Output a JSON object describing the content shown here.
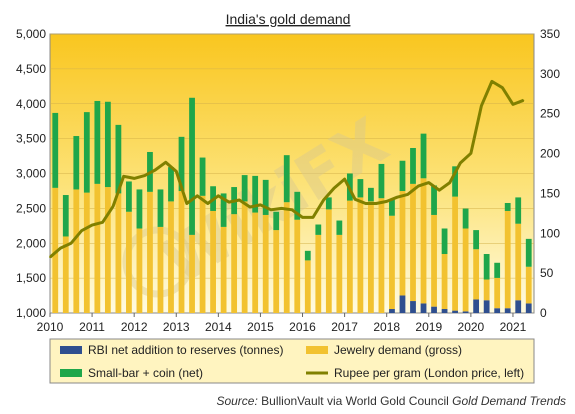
{
  "chart_data": {
    "type": "bar",
    "title": "India's gold demand",
    "left_axis": {
      "min": 1000,
      "max": 5000,
      "ticks": [
        "1,000",
        "1,500",
        "2,000",
        "2,500",
        "3,000",
        "3,500",
        "4,000",
        "4,500",
        "5,000"
      ]
    },
    "right_axis": {
      "min": 0,
      "max": 350,
      "ticks": [
        "0",
        "50",
        "100",
        "150",
        "200",
        "250",
        "300",
        "350"
      ]
    },
    "x_tick_labels": [
      "2010",
      "2011",
      "2012",
      "2013",
      "2014",
      "2015",
      "2016",
      "2017",
      "2018",
      "2019",
      "2020",
      "2021"
    ],
    "x_start": 2010.0,
    "x_end": 2021.5,
    "quarters": [
      "2010 Q1",
      "2010 Q2",
      "2010 Q3",
      "2010 Q4",
      "2011 Q1",
      "2011 Q2",
      "2011 Q3",
      "2011 Q4",
      "2012 Q1",
      "2012 Q2",
      "2012 Q3",
      "2012 Q4",
      "2013 Q1",
      "2013 Q2",
      "2013 Q3",
      "2013 Q4",
      "2014 Q1",
      "2014 Q2",
      "2014 Q3",
      "2014 Q4",
      "2015 Q1",
      "2015 Q2",
      "2015 Q3",
      "2015 Q4",
      "2016 Q1",
      "2016 Q2",
      "2016 Q3",
      "2016 Q4",
      "2017 Q1",
      "2017 Q2",
      "2017 Q3",
      "2017 Q4",
      "2018 Q1",
      "2018 Q2",
      "2018 Q3",
      "2018 Q4",
      "2019 Q1",
      "2019 Q2",
      "2019 Q3",
      "2019 Q4",
      "2020 Q1",
      "2020 Q2",
      "2020 Q3",
      "2020 Q4",
      "2021 Q1",
      "2021 Q2"
    ],
    "series": [
      {
        "name": "RBI net addition to reserves (tonnes)",
        "color": "#2f4f8f",
        "axis": "right",
        "values": [
          0,
          0,
          0,
          0,
          0,
          0,
          0,
          0,
          0,
          0,
          0,
          0,
          0,
          0,
          0,
          0,
          0,
          0,
          0,
          0,
          0,
          0,
          0,
          0,
          0,
          0,
          0,
          0,
          0,
          0,
          0,
          0,
          5,
          22,
          15,
          12,
          8,
          5,
          3,
          2,
          17,
          16,
          6,
          6,
          16,
          12
        ]
      },
      {
        "name": "Jewelry demand (gross)",
        "color": "#f2c230",
        "axis": "right",
        "values": [
          157,
          96,
          155,
          151,
          162,
          158,
          150,
          127,
          106,
          152,
          108,
          140,
          153,
          98,
          147,
          128,
          108,
          124,
          140,
          126,
          123,
          104,
          139,
          117,
          66,
          98,
          130,
          98,
          141,
          145,
          140,
          144,
          117,
          131,
          147,
          157,
          115,
          69,
          143,
          104,
          63,
          26,
          38,
          122,
          96,
          46
        ]
      },
      {
        "name": "Small-bar + coin (net)",
        "color": "#1fa64a",
        "axis": "right",
        "values": [
          94,
          52,
          67,
          101,
          104,
          107,
          86,
          38,
          49,
          50,
          47,
          43,
          68,
          172,
          48,
          31,
          42,
          34,
          33,
          46,
          44,
          23,
          59,
          35,
          12,
          13,
          15,
          18,
          34,
          23,
          17,
          43,
          21,
          38,
          45,
          56,
          37,
          32,
          38,
          25,
          24,
          32,
          19,
          10,
          33,
          35
        ]
      },
      {
        "name": "Rupee per gram (London price, left)",
        "color": "#808000",
        "axis": "left",
        "values": [
          1800,
          1930,
          2000,
          2180,
          2260,
          2300,
          2530,
          2960,
          2930,
          2970,
          3050,
          3160,
          3030,
          2570,
          2680,
          2570,
          2680,
          2590,
          2620,
          2520,
          2550,
          2480,
          2500,
          2480,
          2370,
          2370,
          2620,
          2790,
          2920,
          2630,
          2570,
          2570,
          2600,
          2660,
          2700,
          2820,
          2870,
          2760,
          2870,
          3150,
          3290,
          3970,
          4320,
          4230,
          3990,
          4050
        ]
      }
    ]
  },
  "source": {
    "prefix": "Source:",
    "body": "BullionVault via World Gold Council",
    "emphasis": "Gold Demand Trends"
  },
  "watermark": "WikiFX",
  "colors": {
    "plot_top": "#f9c61f",
    "plot_bottom": "#fff9d6",
    "frame": "#888888",
    "legend_bg": "#fff4c0"
  }
}
